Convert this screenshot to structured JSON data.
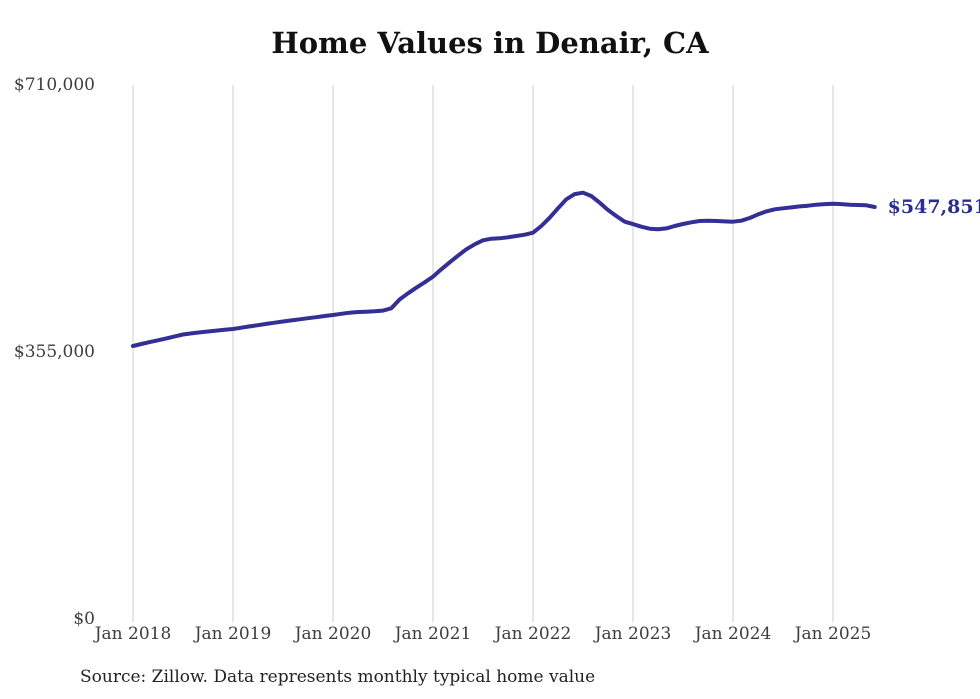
{
  "page": {
    "title": "Home Values in Denair, CA",
    "latest_value_label": "$547,851",
    "source_note": "Source: Zillow. Data represents monthly typical home value"
  },
  "colors": {
    "background": "#ffffff",
    "line": "#332f96",
    "latest_label": "#2b2d91",
    "gridline": "#cccccc",
    "title_text": "#111111",
    "axis_text": "#3d3d3d",
    "source_text": "#222222"
  },
  "chart_data": {
    "type": "line",
    "title": "Home Values in Denair, CA",
    "xlabel": "",
    "ylabel": "",
    "ylim": [
      0,
      710000
    ],
    "grid": "vertical-only",
    "legend": "none",
    "y_ticks": [
      {
        "value": 0,
        "label": "$0"
      },
      {
        "value": 355000,
        "label": "$355,000"
      },
      {
        "value": 710000,
        "label": "$710,000"
      }
    ],
    "x_ticks": [
      {
        "month_index": 0,
        "label": "Jan 2018"
      },
      {
        "month_index": 12,
        "label": "Jan 2019"
      },
      {
        "month_index": 24,
        "label": "Jan 2020"
      },
      {
        "month_index": 36,
        "label": "Jan 2021"
      },
      {
        "month_index": 48,
        "label": "Jan 2022"
      },
      {
        "month_index": 60,
        "label": "Jan 2023"
      },
      {
        "month_index": 72,
        "label": "Jan 2024"
      },
      {
        "month_index": 84,
        "label": "Jan 2025"
      }
    ],
    "series": [
      {
        "name": "Monthly typical home value",
        "start_month": "2018-01",
        "frequency": "monthly",
        "final_value": 547851,
        "values": [
          363000,
          365600,
          368100,
          370600,
          373100,
          375700,
          378300,
          379700,
          381000,
          382200,
          383400,
          384500,
          385600,
          387300,
          389000,
          390600,
          392300,
          393900,
          395500,
          397000,
          398500,
          399900,
          401300,
          402800,
          404200,
          405800,
          407300,
          408200,
          408600,
          409100,
          410000,
          413100,
          425000,
          433100,
          440500,
          447700,
          455200,
          465000,
          474300,
          483100,
          491600,
          498200,
          503500,
          505600,
          506200,
          507500,
          509200,
          511000,
          513600,
          522500,
          533600,
          546000,
          558000,
          565000,
          566800,
          562400,
          553500,
          543800,
          535800,
          528200,
          525000,
          521600,
          518900,
          518100,
          519400,
          522500,
          525200,
          527400,
          529200,
          529600,
          529200,
          528700,
          528200,
          529600,
          533100,
          538000,
          542000,
          544700,
          546000,
          547300,
          548600,
          549500,
          550800,
          551700,
          552100,
          551700,
          550800,
          550400,
          550000,
          547851
        ]
      }
    ]
  }
}
